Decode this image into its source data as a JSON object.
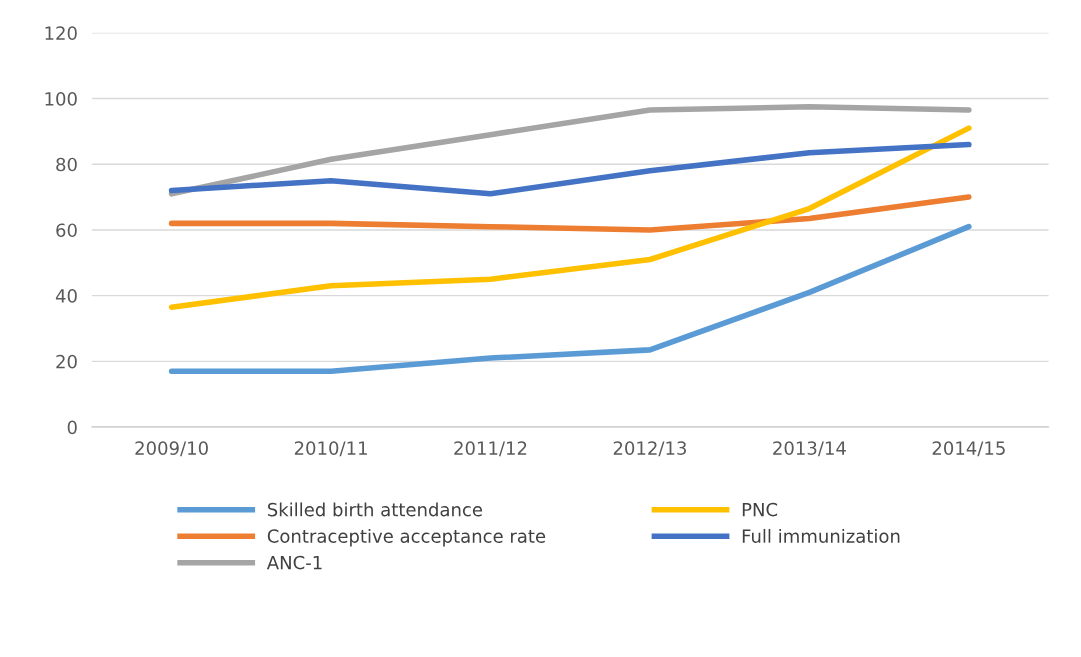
{
  "chart_data": {
    "type": "line",
    "categories": [
      "2009/10",
      "2010/11",
      "2011/12",
      "2012/13",
      "2013/14",
      "2014/15"
    ],
    "series": [
      {
        "name": "Skilled birth attendance",
        "color": "#5b9bd5",
        "values": [
          17,
          17,
          21,
          23.5,
          41,
          61
        ]
      },
      {
        "name": "Contraceptive acceptance rate",
        "color": "#ed7d31",
        "values": [
          62,
          62,
          61,
          60,
          63.5,
          70
        ]
      },
      {
        "name": "ANC-1",
        "color": "#a5a5a5",
        "values": [
          71,
          81.5,
          89,
          96.5,
          97.5,
          96.5
        ]
      },
      {
        "name": "PNC",
        "color": "#ffc000",
        "values": [
          36.5,
          43,
          45,
          51,
          66.5,
          91
        ]
      },
      {
        "name": "Full immunization",
        "color": "#4472c4",
        "values": [
          72,
          75,
          71,
          78,
          83.5,
          86
        ]
      }
    ],
    "ylim": [
      0,
      120
    ],
    "yticks": [
      0,
      20,
      40,
      60,
      80,
      100,
      120
    ],
    "grid": "y",
    "legend": "bottom",
    "marker": "none",
    "line_style": "solid"
  }
}
